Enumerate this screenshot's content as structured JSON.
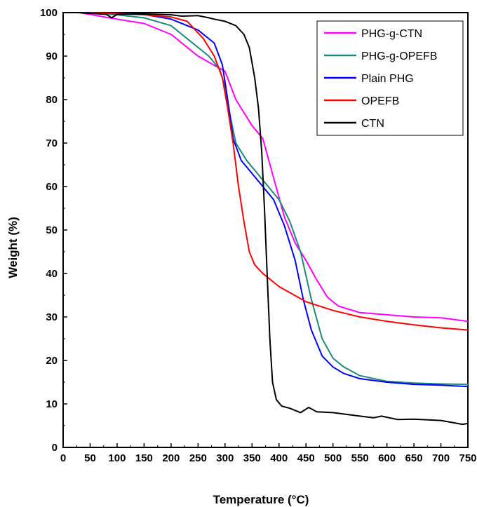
{
  "chart_data": {
    "type": "line",
    "title": "",
    "xlabel": "Temperature (°C)",
    "ylabel": "Weight (%)",
    "xlim": [
      0,
      750
    ],
    "ylim": [
      0,
      100
    ],
    "xticks": [
      0,
      50,
      100,
      150,
      200,
      250,
      300,
      350,
      400,
      450,
      500,
      550,
      600,
      650,
      700,
      750
    ],
    "yticks": [
      0,
      10,
      20,
      30,
      40,
      50,
      60,
      70,
      80,
      90,
      100
    ],
    "grid": false,
    "legend_position": "top-right",
    "series": [
      {
        "name": "PHG-g-CTN",
        "color": "#ff00ff",
        "points": [
          [
            30,
            100
          ],
          [
            100,
            98.5
          ],
          [
            150,
            97.5
          ],
          [
            200,
            95
          ],
          [
            250,
            90
          ],
          [
            300,
            86.5
          ],
          [
            320,
            80
          ],
          [
            350,
            74
          ],
          [
            370,
            71
          ],
          [
            390,
            62
          ],
          [
            410,
            53
          ],
          [
            430,
            47
          ],
          [
            450,
            43
          ],
          [
            470,
            38.5
          ],
          [
            490,
            34.5
          ],
          [
            510,
            32.5
          ],
          [
            550,
            31
          ],
          [
            600,
            30.5
          ],
          [
            650,
            30
          ],
          [
            700,
            29.8
          ],
          [
            750,
            29
          ]
        ]
      },
      {
        "name": "PHG-g-OPEFB",
        "color": "#1a8a7a",
        "points": [
          [
            30,
            100
          ],
          [
            100,
            99.5
          ],
          [
            150,
            98.8
          ],
          [
            200,
            97
          ],
          [
            230,
            94
          ],
          [
            250,
            92
          ],
          [
            270,
            90
          ],
          [
            290,
            87
          ],
          [
            300,
            83
          ],
          [
            310,
            76
          ],
          [
            320,
            70
          ],
          [
            340,
            66
          ],
          [
            360,
            63
          ],
          [
            380,
            60
          ],
          [
            400,
            57
          ],
          [
            420,
            52
          ],
          [
            440,
            45
          ],
          [
            460,
            34
          ],
          [
            480,
            25
          ],
          [
            500,
            20.5
          ],
          [
            520,
            18.5
          ],
          [
            550,
            16.5
          ],
          [
            600,
            15.2
          ],
          [
            650,
            14.8
          ],
          [
            700,
            14.6
          ],
          [
            750,
            14.5
          ]
        ]
      },
      {
        "name": "Plain PHG",
        "color": "#0000ff",
        "points": [
          [
            30,
            100
          ],
          [
            100,
            99.8
          ],
          [
            150,
            99.6
          ],
          [
            200,
            98.5
          ],
          [
            250,
            96
          ],
          [
            280,
            93
          ],
          [
            295,
            88
          ],
          [
            305,
            80
          ],
          [
            315,
            71
          ],
          [
            330,
            66
          ],
          [
            350,
            63
          ],
          [
            370,
            60
          ],
          [
            390,
            57
          ],
          [
            410,
            51
          ],
          [
            430,
            43
          ],
          [
            445,
            34
          ],
          [
            460,
            27
          ],
          [
            480,
            21
          ],
          [
            500,
            18.5
          ],
          [
            520,
            17
          ],
          [
            550,
            15.8
          ],
          [
            600,
            15
          ],
          [
            650,
            14.5
          ],
          [
            700,
            14.3
          ],
          [
            750,
            14
          ]
        ]
      },
      {
        "name": "OPEFB",
        "color": "#ff0000",
        "points": [
          [
            30,
            100
          ],
          [
            100,
            99.8
          ],
          [
            150,
            99.5
          ],
          [
            200,
            99
          ],
          [
            230,
            98
          ],
          [
            260,
            94
          ],
          [
            280,
            90
          ],
          [
            295,
            85
          ],
          [
            305,
            78
          ],
          [
            315,
            70
          ],
          [
            325,
            60
          ],
          [
            335,
            52
          ],
          [
            345,
            45
          ],
          [
            355,
            42
          ],
          [
            370,
            40
          ],
          [
            400,
            37
          ],
          [
            450,
            33.5
          ],
          [
            500,
            31.5
          ],
          [
            550,
            30
          ],
          [
            600,
            29
          ],
          [
            650,
            28.2
          ],
          [
            700,
            27.5
          ],
          [
            750,
            27
          ]
        ]
      },
      {
        "name": "CTN",
        "color": "#000000",
        "points": [
          [
            30,
            100
          ],
          [
            80,
            99.6
          ],
          [
            90,
            98.8
          ],
          [
            100,
            99.6
          ],
          [
            150,
            99.7
          ],
          [
            200,
            99.5
          ],
          [
            220,
            99.2
          ],
          [
            250,
            99.3
          ],
          [
            270,
            98.8
          ],
          [
            280,
            98.5
          ],
          [
            300,
            98
          ],
          [
            320,
            97
          ],
          [
            335,
            95
          ],
          [
            345,
            92
          ],
          [
            355,
            85
          ],
          [
            362,
            78
          ],
          [
            368,
            68
          ],
          [
            373,
            55
          ],
          [
            378,
            40
          ],
          [
            383,
            25
          ],
          [
            388,
            15
          ],
          [
            395,
            11
          ],
          [
            405,
            9.5
          ],
          [
            420,
            9
          ],
          [
            440,
            8
          ],
          [
            455,
            9.2
          ],
          [
            470,
            8.2
          ],
          [
            500,
            8
          ],
          [
            550,
            7.2
          ],
          [
            575,
            6.8
          ],
          [
            590,
            7.2
          ],
          [
            620,
            6.4
          ],
          [
            650,
            6.5
          ],
          [
            700,
            6.2
          ],
          [
            740,
            5.3
          ],
          [
            750,
            5.5
          ]
        ]
      }
    ]
  }
}
